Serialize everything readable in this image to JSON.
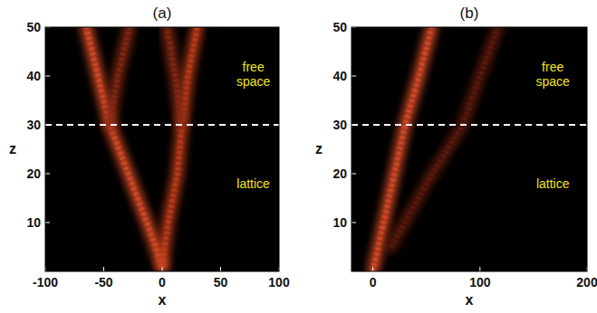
{
  "chart_data": [
    {
      "type": "line",
      "title": "(a)",
      "x_label": "x",
      "y_label": "z",
      "xlim": [
        -100,
        100
      ],
      "xticks": [
        -100,
        -50,
        0,
        50,
        100
      ],
      "ylim": [
        0,
        50
      ],
      "yticks": [
        10,
        20,
        30,
        40,
        50
      ],
      "hline": 30,
      "line_style": "dashed",
      "annotations": [
        {
          "text": "free space",
          "x": 78,
          "y": 41
        },
        {
          "text": "lattice",
          "x": 78,
          "y": 17
        }
      ],
      "series": [
        {
          "color": "#e3502a",
          "x": [
            0,
            -10,
            -29,
            -45,
            -55,
            -65
          ],
          "values": [
            1,
            8,
            20,
            30,
            40,
            50
          ]
        },
        {
          "color": "#c9401f",
          "x": [
            0,
            5,
            13,
            17,
            22,
            30
          ],
          "values": [
            1,
            10,
            20,
            30,
            40,
            50
          ]
        },
        {
          "color": "#8a2a12",
          "x": [
            -45,
            -38,
            -28
          ],
          "values": [
            30,
            40,
            50
          ]
        },
        {
          "color": "#8a2a12",
          "x": [
            17,
            11,
            4
          ],
          "values": [
            30,
            40,
            50
          ]
        },
        {
          "color": "#ffb347",
          "x": [
            0,
            0
          ],
          "values": [
            1,
            6
          ]
        }
      ]
    },
    {
      "type": "line",
      "title": "(b)",
      "x_label": "x",
      "y_label": "z",
      "xlim": [
        -20,
        200
      ],
      "xticks": [
        0,
        100,
        200
      ],
      "ylim": [
        0,
        50
      ],
      "yticks": [
        10,
        20,
        30,
        40,
        50
      ],
      "hline": 30,
      "line_style": "dashed",
      "annotations": [
        {
          "text": "free space",
          "x": 168,
          "y": 41
        },
        {
          "text": "lattice",
          "x": 168,
          "y": 17
        }
      ],
      "series": [
        {
          "color": "#e3502a",
          "x": [
            0,
            15,
            30,
            43,
            55
          ],
          "values": [
            0,
            15,
            30,
            40,
            50
          ]
        },
        {
          "color": "#5e1a0a",
          "x": [
            17,
            50,
            84,
            100,
            117
          ],
          "values": [
            5,
            18,
            30,
            40,
            50
          ]
        }
      ]
    }
  ]
}
